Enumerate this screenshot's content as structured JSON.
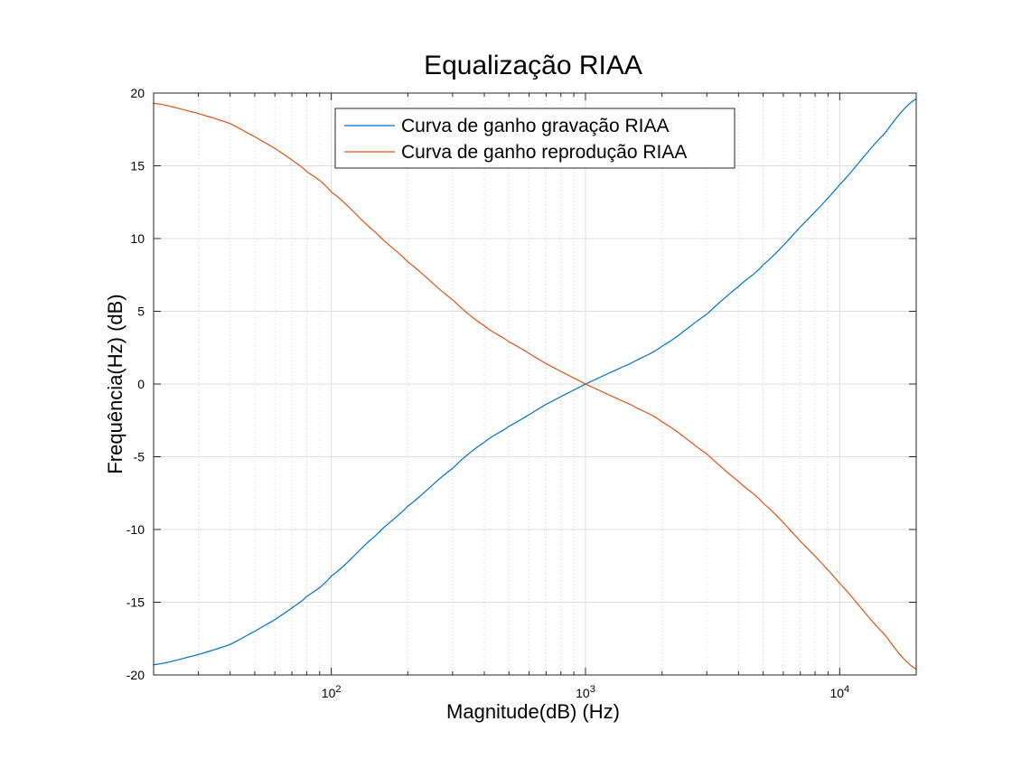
{
  "chart_data": {
    "type": "line",
    "title": "Equalização RIAA",
    "xlabel": "Magnitude(dB)  (Hz)",
    "ylabel": "Frequência(Hz) (dB)",
    "x_scale": "log",
    "xlim": [
      20,
      20000
    ],
    "ylim": [
      -20,
      20
    ],
    "grid": true,
    "legend_position": "top-center",
    "y_ticks": [
      -20,
      -15,
      -10,
      -5,
      0,
      5,
      10,
      15,
      20
    ],
    "y_tick_labels": [
      "-20",
      "-15",
      "-10",
      "-5",
      "0",
      "5",
      "10",
      "15",
      "20"
    ],
    "x_ticks": [
      {
        "value": 100,
        "base": "10",
        "exp": "2"
      },
      {
        "value": 1000,
        "base": "10",
        "exp": "3"
      },
      {
        "value": 10000,
        "base": "10",
        "exp": "4"
      }
    ],
    "x": [
      20,
      30,
      40,
      50,
      60,
      70,
      80,
      100,
      150,
      200,
      300,
      400,
      500,
      700,
      1000,
      1500,
      2000,
      3000,
      4000,
      5000,
      7000,
      10000,
      15000,
      20000
    ],
    "series": [
      {
        "name": "Curva de ganho gravação RIAA",
        "color": "#0072bd",
        "values": [
          -19.3,
          -18.6,
          -17.9,
          -17.0,
          -16.2,
          -15.4,
          -14.6,
          -13.2,
          -10.4,
          -8.4,
          -5.8,
          -4.0,
          -2.9,
          -1.4,
          0.0,
          1.4,
          2.6,
          4.8,
          6.7,
          8.2,
          10.8,
          13.7,
          17.2,
          19.6
        ]
      },
      {
        "name": "Curva de ganho reprodução RIAA",
        "color": "#d95319",
        "values": [
          19.3,
          18.6,
          17.9,
          17.0,
          16.2,
          15.4,
          14.6,
          13.2,
          10.4,
          8.4,
          5.8,
          4.0,
          2.9,
          1.4,
          0.0,
          -1.4,
          -2.6,
          -4.8,
          -6.7,
          -8.2,
          -10.8,
          -13.7,
          -17.2,
          -19.6
        ]
      }
    ]
  }
}
